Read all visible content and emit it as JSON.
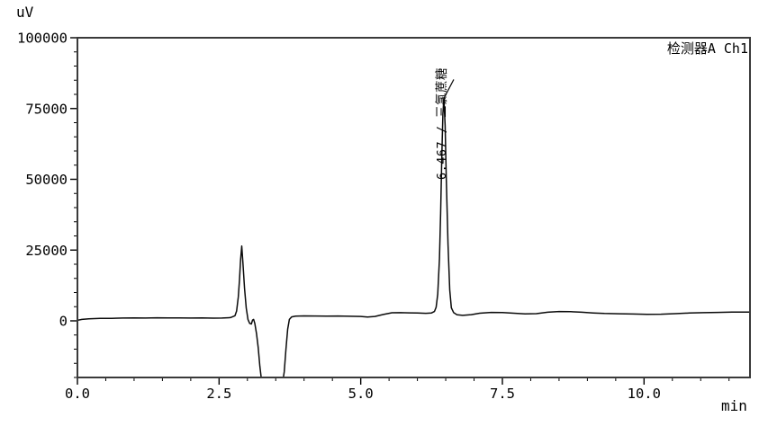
{
  "header": {
    "detector_label": "检测器A Ch1"
  },
  "axes": {
    "y_unit": "uV",
    "x_unit": "min"
  },
  "peak_label": {
    "text": "6.467 / 三氯蔗糖"
  },
  "colors": {
    "background": "#ffffff",
    "frame": "#3a3a3a",
    "trace": "#0a0a0a",
    "tick": "#000000",
    "text": "#000000"
  },
  "chart_data": {
    "type": "line",
    "title": "",
    "xlabel": "min",
    "ylabel": "uV",
    "xlim": [
      0,
      11.87
    ],
    "ylim": [
      -20000,
      100000
    ],
    "grid": false,
    "legend": "none",
    "x_major_ticks": [
      0,
      2.5,
      5,
      7.5,
      10
    ],
    "x_tick_labels": [
      "0.0",
      "2.5",
      "5.0",
      "7.5",
      "10.0"
    ],
    "x_minor_step": 0.5,
    "y_major_ticks": [
      0,
      25000,
      50000,
      75000,
      100000
    ],
    "y_tick_labels": [
      "0",
      "25000",
      "50000",
      "75000",
      "100000"
    ],
    "y_minor_step": 5000,
    "annotations": [
      {
        "text": "6.467 / 三氯蔗糖",
        "x": 6.467,
        "y": 78600,
        "type": "peak-retention-time"
      }
    ],
    "series": [
      {
        "name": "检测器A Ch1",
        "points": [
          [
            0.0,
            200
          ],
          [
            0.08,
            500
          ],
          [
            0.2,
            700
          ],
          [
            0.4,
            850
          ],
          [
            0.6,
            900
          ],
          [
            0.8,
            1000
          ],
          [
            1.0,
            1050
          ],
          [
            1.2,
            1000
          ],
          [
            1.4,
            1080
          ],
          [
            1.6,
            1020
          ],
          [
            1.8,
            1060
          ],
          [
            2.0,
            980
          ],
          [
            2.2,
            1020
          ],
          [
            2.4,
            960
          ],
          [
            2.55,
            1000
          ],
          [
            2.7,
            1150
          ],
          [
            2.78,
            1800
          ],
          [
            2.81,
            3500
          ],
          [
            2.84,
            8500
          ],
          [
            2.86,
            14500
          ],
          [
            2.88,
            21500
          ],
          [
            2.9,
            26400
          ],
          [
            2.92,
            20500
          ],
          [
            2.95,
            11500
          ],
          [
            2.98,
            4500
          ],
          [
            3.01,
            500
          ],
          [
            3.04,
            -900
          ],
          [
            3.07,
            -1100
          ],
          [
            3.09,
            300
          ],
          [
            3.11,
            500
          ],
          [
            3.13,
            -900
          ],
          [
            3.16,
            -4500
          ],
          [
            3.19,
            -9500
          ],
          [
            3.22,
            -16000
          ],
          [
            3.26,
            -23000
          ],
          [
            3.32,
            -27000
          ],
          [
            3.42,
            -28000
          ],
          [
            3.52,
            -27000
          ],
          [
            3.6,
            -24500
          ],
          [
            3.65,
            -18000
          ],
          [
            3.68,
            -10000
          ],
          [
            3.71,
            -3000
          ],
          [
            3.74,
            500
          ],
          [
            3.78,
            1400
          ],
          [
            3.85,
            1650
          ],
          [
            4.0,
            1750
          ],
          [
            4.2,
            1700
          ],
          [
            4.4,
            1680
          ],
          [
            4.6,
            1700
          ],
          [
            4.8,
            1620
          ],
          [
            5.0,
            1550
          ],
          [
            5.12,
            1350
          ],
          [
            5.25,
            1550
          ],
          [
            5.4,
            2250
          ],
          [
            5.55,
            2850
          ],
          [
            5.7,
            2900
          ],
          [
            5.85,
            2820
          ],
          [
            6.0,
            2750
          ],
          [
            6.15,
            2680
          ],
          [
            6.25,
            2800
          ],
          [
            6.3,
            3300
          ],
          [
            6.33,
            4800
          ],
          [
            6.36,
            9500
          ],
          [
            6.39,
            22000
          ],
          [
            6.41,
            38000
          ],
          [
            6.43,
            58000
          ],
          [
            6.45,
            73000
          ],
          [
            6.467,
            78600
          ],
          [
            6.49,
            69000
          ],
          [
            6.51,
            50000
          ],
          [
            6.54,
            27000
          ],
          [
            6.57,
            11000
          ],
          [
            6.6,
            4600
          ],
          [
            6.64,
            2900
          ],
          [
            6.7,
            2150
          ],
          [
            6.8,
            1950
          ],
          [
            6.95,
            2200
          ],
          [
            7.1,
            2700
          ],
          [
            7.3,
            3000
          ],
          [
            7.5,
            2950
          ],
          [
            7.7,
            2700
          ],
          [
            7.9,
            2450
          ],
          [
            8.1,
            2550
          ],
          [
            8.3,
            3050
          ],
          [
            8.5,
            3300
          ],
          [
            8.7,
            3250
          ],
          [
            8.9,
            3050
          ],
          [
            9.1,
            2800
          ],
          [
            9.3,
            2600
          ],
          [
            9.55,
            2500
          ],
          [
            9.8,
            2400
          ],
          [
            10.05,
            2320
          ],
          [
            10.3,
            2350
          ],
          [
            10.55,
            2550
          ],
          [
            10.8,
            2750
          ],
          [
            11.05,
            2900
          ],
          [
            11.3,
            3000
          ],
          [
            11.55,
            3080
          ],
          [
            11.87,
            3100
          ]
        ]
      }
    ]
  }
}
